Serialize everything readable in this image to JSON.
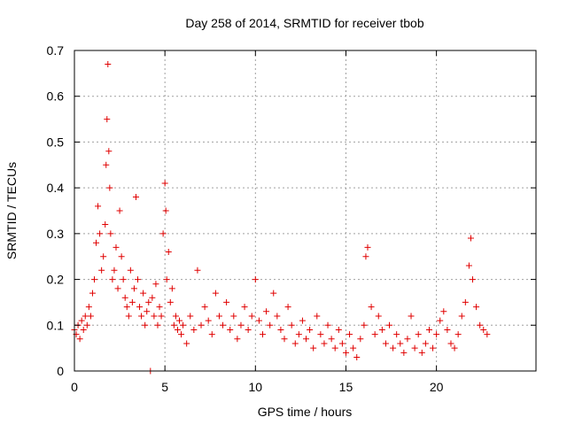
{
  "chart_data": {
    "type": "scatter",
    "title": "Day 258 of 2014, SRMTID for receiver tbob",
    "xlabel": "GPS time / hours",
    "ylabel": "SRMTID / TECUs",
    "xlim": [
      0,
      25.5
    ],
    "ylim": [
      0,
      0.7
    ],
    "xticks": [
      0,
      5,
      10,
      15,
      20
    ],
    "xtick_labels": [
      "0",
      "5",
      "10",
      "15",
      "20"
    ],
    "yticks": [
      0,
      0.1,
      0.2,
      0.3,
      0.4,
      0.5,
      0.6,
      0.7
    ],
    "ytick_labels": [
      "0",
      "0.1",
      "0.2",
      "0.3",
      "0.4",
      "0.5",
      "0.6",
      "0.7"
    ],
    "grid": true,
    "marker": "+",
    "series": [
      {
        "name": "tbob",
        "color": "#e00000",
        "x": [
          0.0,
          0.1,
          0.2,
          0.3,
          0.4,
          0.5,
          0.6,
          0.7,
          0.8,
          0.9,
          1.0,
          1.1,
          1.2,
          1.3,
          1.4,
          1.5,
          1.6,
          1.7,
          1.75,
          1.8,
          1.85,
          1.9,
          1.95,
          2.0,
          2.1,
          2.2,
          2.3,
          2.4,
          2.5,
          2.6,
          2.7,
          2.8,
          2.9,
          3.0,
          3.1,
          3.2,
          3.3,
          3.4,
          3.5,
          3.6,
          3.7,
          3.8,
          3.9,
          4.0,
          4.1,
          4.2,
          4.3,
          4.4,
          4.5,
          4.6,
          4.7,
          4.8,
          4.9,
          5.0,
          5.05,
          5.1,
          5.2,
          5.3,
          5.4,
          5.5,
          5.6,
          5.7,
          5.8,
          5.9,
          6.0,
          6.2,
          6.4,
          6.6,
          6.8,
          7.0,
          7.2,
          7.4,
          7.6,
          7.8,
          8.0,
          8.2,
          8.4,
          8.6,
          8.8,
          9.0,
          9.2,
          9.4,
          9.6,
          9.8,
          10.0,
          10.2,
          10.4,
          10.6,
          10.8,
          11.0,
          11.2,
          11.4,
          11.6,
          11.8,
          12.0,
          12.2,
          12.4,
          12.6,
          12.8,
          13.0,
          13.2,
          13.4,
          13.6,
          13.8,
          14.0,
          14.2,
          14.4,
          14.6,
          14.8,
          15.0,
          15.2,
          15.4,
          15.6,
          15.8,
          16.0,
          16.1,
          16.2,
          16.4,
          16.6,
          16.8,
          17.0,
          17.2,
          17.4,
          17.6,
          17.8,
          18.0,
          18.2,
          18.4,
          18.6,
          18.8,
          19.0,
          19.2,
          19.4,
          19.6,
          19.8,
          20.0,
          20.2,
          20.4,
          20.6,
          20.8,
          21.0,
          21.2,
          21.4,
          21.6,
          21.8,
          21.9,
          22.0,
          22.2,
          22.4,
          22.6,
          22.8
        ],
        "y": [
          0.09,
          0.08,
          0.1,
          0.07,
          0.11,
          0.09,
          0.12,
          0.1,
          0.14,
          0.12,
          0.17,
          0.2,
          0.28,
          0.36,
          0.3,
          0.22,
          0.25,
          0.32,
          0.45,
          0.55,
          0.67,
          0.48,
          0.4,
          0.3,
          0.2,
          0.22,
          0.27,
          0.18,
          0.35,
          0.25,
          0.2,
          0.16,
          0.14,
          0.12,
          0.22,
          0.15,
          0.18,
          0.38,
          0.2,
          0.14,
          0.12,
          0.17,
          0.1,
          0.13,
          0.15,
          0.0,
          0.16,
          0.12,
          0.19,
          0.1,
          0.14,
          0.12,
          0.3,
          0.41,
          0.35,
          0.2,
          0.26,
          0.15,
          0.18,
          0.1,
          0.12,
          0.09,
          0.11,
          0.08,
          0.1,
          0.06,
          0.12,
          0.09,
          0.22,
          0.1,
          0.14,
          0.11,
          0.08,
          0.17,
          0.12,
          0.1,
          0.15,
          0.09,
          0.12,
          0.07,
          0.1,
          0.14,
          0.09,
          0.12,
          0.2,
          0.11,
          0.08,
          0.13,
          0.1,
          0.17,
          0.12,
          0.09,
          0.07,
          0.14,
          0.1,
          0.06,
          0.08,
          0.11,
          0.07,
          0.09,
          0.05,
          0.12,
          0.08,
          0.06,
          0.1,
          0.07,
          0.05,
          0.09,
          0.06,
          0.04,
          0.08,
          0.05,
          0.03,
          0.07,
          0.1,
          0.25,
          0.27,
          0.14,
          0.08,
          0.12,
          0.09,
          0.06,
          0.1,
          0.05,
          0.08,
          0.06,
          0.04,
          0.07,
          0.12,
          0.05,
          0.08,
          0.04,
          0.06,
          0.09,
          0.05,
          0.08,
          0.11,
          0.13,
          0.09,
          0.06,
          0.05,
          0.08,
          0.12,
          0.15,
          0.23,
          0.29,
          0.2,
          0.14,
          0.1,
          0.09,
          0.08
        ]
      }
    ]
  }
}
